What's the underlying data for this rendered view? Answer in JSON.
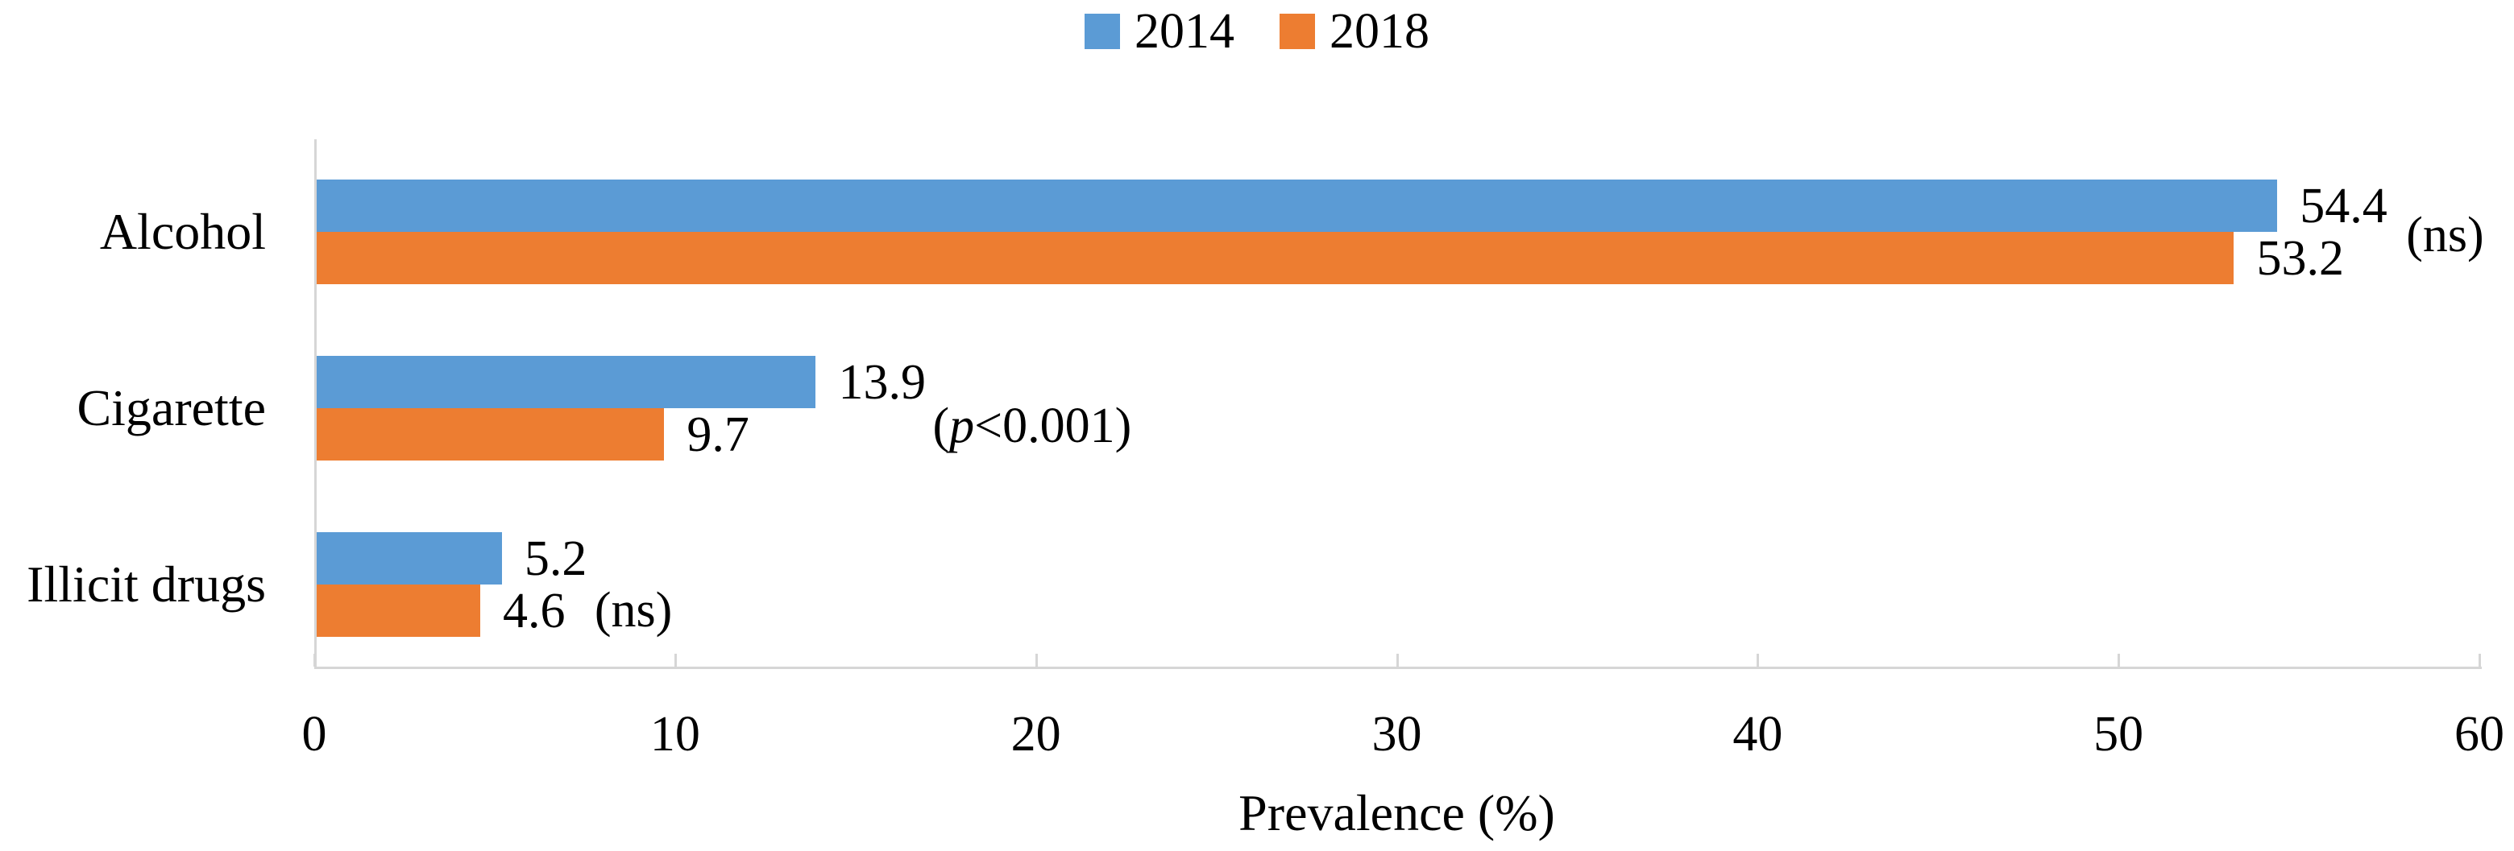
{
  "chart_data": {
    "type": "bar",
    "orientation": "horizontal",
    "title": "",
    "categories": [
      "Alcohol",
      "Cigarette",
      "Illicit drugs"
    ],
    "series": [
      {
        "name": "2014",
        "color": "#5B9BD5",
        "values": [
          54.4,
          13.9,
          5.2
        ]
      },
      {
        "name": "2018",
        "color": "#ED7D31",
        "values": [
          53.2,
          9.7,
          4.6
        ]
      }
    ],
    "value_labels": [
      [
        "54.4",
        "13.9",
        "5.2"
      ],
      [
        "53.2",
        "9.7",
        "4.6"
      ]
    ],
    "annotations": [
      {
        "segments": [
          {
            "t": "(ns)"
          }
        ]
      },
      {
        "segments": [
          {
            "t": "("
          },
          {
            "t": "p",
            "i": true
          },
          {
            "t": "<0.001)"
          }
        ]
      },
      {
        "segments": [
          {
            "t": "(ns)"
          }
        ]
      }
    ],
    "xlabel": "Prevalence (%)",
    "xlim": [
      0,
      60
    ],
    "xticks": [
      "0",
      "10",
      "20",
      "30",
      "40",
      "50",
      "60"
    ],
    "grid": false,
    "legend_position": "top-center",
    "axis_color": "#d6d6d6",
    "text_color": "#000000"
  }
}
